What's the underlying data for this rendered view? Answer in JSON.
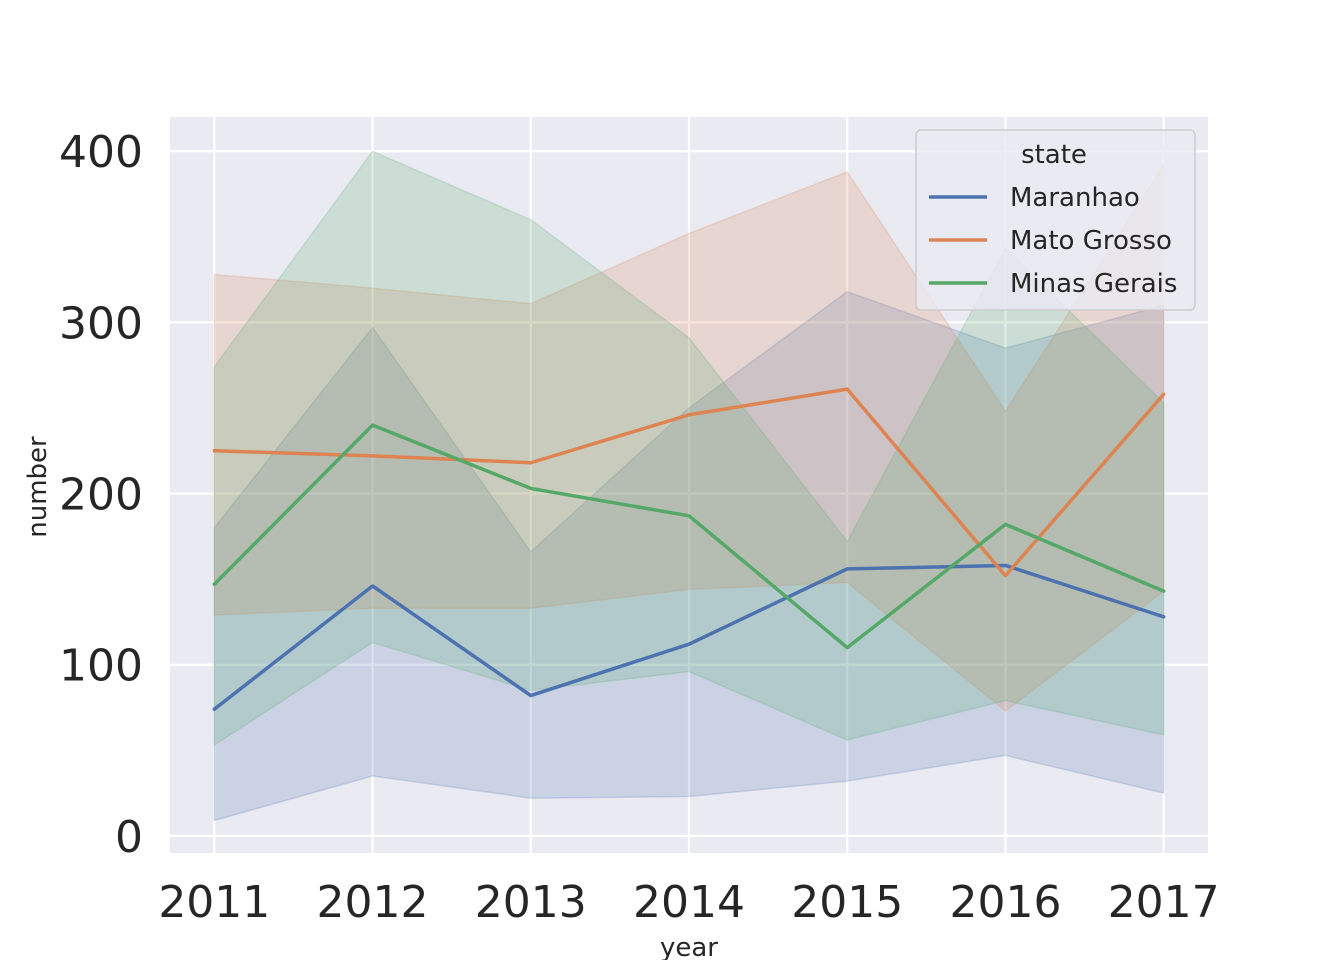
{
  "chart_data": {
    "type": "line",
    "xlabel": "year",
    "ylabel": "number",
    "x": [
      2011,
      2012,
      2013,
      2014,
      2015,
      2016,
      2017
    ],
    "xticks": [
      "2011",
      "2012",
      "2013",
      "2014",
      "2015",
      "2016",
      "2017"
    ],
    "yticks": [
      "0",
      "100",
      "200",
      "300",
      "400"
    ],
    "ylim": [
      -10,
      420
    ],
    "xlim": [
      2010.72,
      2017.28
    ],
    "grid": true,
    "legend": {
      "title": "state",
      "placement": "top-right"
    },
    "series": [
      {
        "name": "Maranhao",
        "color": "#4c72b0",
        "values": [
          74,
          146,
          82,
          112,
          156,
          158,
          128
        ],
        "ci_low": [
          9,
          35,
          22,
          23,
          32,
          47,
          25
        ],
        "ci_high": [
          180,
          297,
          166,
          250,
          318,
          285,
          310
        ]
      },
      {
        "name": "Mato Grosso",
        "color": "#dd8452",
        "values": [
          225,
          222,
          218,
          246,
          261,
          152,
          258
        ],
        "ci_low": [
          129,
          133,
          133,
          144,
          148,
          73,
          143
        ],
        "ci_high": [
          328,
          320,
          311,
          352,
          388,
          248,
          392
        ]
      },
      {
        "name": "Minas Gerais",
        "color": "#55a868",
        "values": [
          147,
          240,
          203,
          187,
          110,
          182,
          143
        ],
        "ci_low": [
          53,
          113,
          85,
          96,
          56,
          79,
          59
        ],
        "ci_high": [
          274,
          400,
          360,
          291,
          172,
          343,
          253
        ]
      }
    ]
  }
}
